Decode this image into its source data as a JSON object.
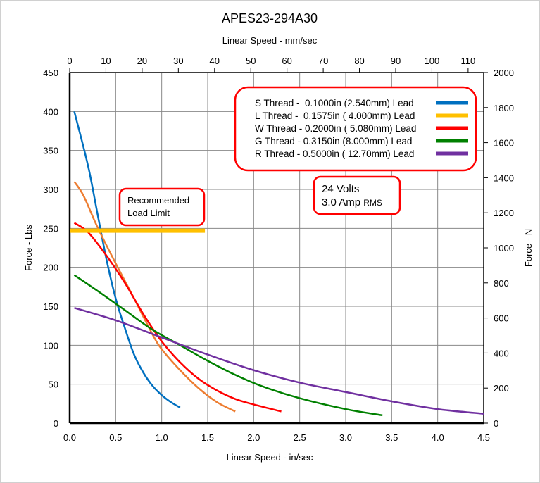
{
  "chart_data": {
    "type": "line",
    "title": "APES23-294A30",
    "xlabel": "Linear Speed - in/sec",
    "x2label": "Linear Speed - mm/sec",
    "ylabel": "Force - Lbs",
    "y2label": "Force - N",
    "xlim": [
      0,
      4.5
    ],
    "ylim": [
      0,
      450
    ],
    "x2lim": [
      0,
      114.3
    ],
    "y2lim": [
      0,
      2000
    ],
    "xticks": [
      "0.0",
      "0.5",
      "1.0",
      "1.5",
      "2.0",
      "2.5",
      "3.0",
      "3.5",
      "4.0",
      "4.5"
    ],
    "yticks": [
      "0",
      "50",
      "100",
      "150",
      "200",
      "250",
      "300",
      "350",
      "400",
      "450"
    ],
    "x2ticks": [
      "0",
      "10",
      "20",
      "30",
      "40",
      "50",
      "60",
      "70",
      "80",
      "90",
      "100",
      "110"
    ],
    "y2ticks": [
      "0",
      "200",
      "400",
      "600",
      "800",
      "1000",
      "1200",
      "1400",
      "1600",
      "1800",
      "2000"
    ],
    "grid": true,
    "legend_placement": "top-right",
    "series": [
      {
        "name": "S Thread -  0.1000in (2.540mm) Lead",
        "color": "#0070c0",
        "x": [
          0.05,
          0.2,
          0.3,
          0.4,
          0.5,
          0.6,
          0.7,
          0.8,
          0.9,
          1.0,
          1.1,
          1.2
        ],
        "y": [
          400,
          330,
          270,
          210,
          160,
          122,
          88,
          65,
          48,
          36,
          27,
          20
        ]
      },
      {
        "name": "L Thread -  0.1575in ( 4.000mm) Lead",
        "color": "#ed7d31",
        "legend_color": "#ffc000",
        "x": [
          0.05,
          0.15,
          0.3,
          0.5,
          0.7,
          0.9,
          1.0,
          1.2,
          1.4,
          1.6,
          1.8
        ],
        "y": [
          310,
          292,
          252,
          205,
          160,
          114,
          95,
          68,
          45,
          27,
          15
        ]
      },
      {
        "name": "W Thread - 0.2000in ( 5.080mm) Lead",
        "color": "#ff0000",
        "x": [
          0.05,
          0.2,
          0.4,
          0.6,
          0.8,
          1.0,
          1.2,
          1.4,
          1.6,
          1.8,
          2.0,
          2.3
        ],
        "y": [
          257,
          245,
          215,
          180,
          140,
          105,
          78,
          57,
          42,
          31,
          24,
          15
        ]
      },
      {
        "name": "G Thread - 0.3150in (8.000mm) Lead",
        "color": "#008000",
        "x": [
          0.05,
          0.3,
          0.6,
          0.9,
          1.2,
          1.5,
          1.8,
          2.1,
          2.5,
          3.0,
          3.4
        ],
        "y": [
          190,
          170,
          145,
          120,
          100,
          80,
          62,
          47,
          32,
          18,
          10
        ]
      },
      {
        "name": "R Thread - 0.5000in ( 12.70mm) Lead",
        "color": "#7030a0",
        "x": [
          0.05,
          0.5,
          1.0,
          1.5,
          2.0,
          2.5,
          3.0,
          3.5,
          4.0,
          4.5
        ],
        "y": [
          148,
          132,
          110,
          88,
          68,
          52,
          40,
          28,
          18,
          12
        ]
      }
    ],
    "annotations": {
      "load_limit_label_1": "Recommended",
      "load_limit_label_2": "Load Limit",
      "load_limit_value": 247,
      "load_limit_x_end": 1.47,
      "load_limit_color": "#ffc000",
      "voltage": "24 Volts",
      "current": "3.0 Amp",
      "current_unit": "RMS"
    }
  }
}
